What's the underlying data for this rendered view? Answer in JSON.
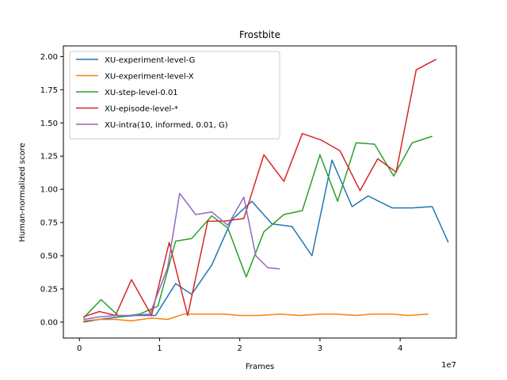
{
  "chart_data": {
    "type": "line",
    "title": "Frostbite",
    "xlabel": "Frames",
    "ylabel": "Human-normalized score",
    "x_offset_label": "1e7",
    "xlim": [
      -0.2,
      4.7
    ],
    "ylim": [
      -0.12,
      2.08
    ],
    "x_ticks": [
      0,
      1,
      2,
      3,
      4
    ],
    "x_tick_labels": [
      "0",
      "1",
      "2",
      "3",
      "4"
    ],
    "y_ticks": [
      0,
      0.25,
      0.5,
      0.75,
      1.0,
      1.25,
      1.5,
      1.75,
      2.0
    ],
    "y_tick_labels": [
      "0.00",
      "0.25",
      "0.50",
      "0.75",
      "1.00",
      "1.25",
      "1.50",
      "1.75",
      "2.00"
    ],
    "grid": false,
    "legend_position": "top-left",
    "series": [
      {
        "name": "XU-experiment-level-G",
        "color": "#1f77b4",
        "x": [
          0.05,
          0.25,
          0.5,
          0.7,
          0.95,
          1.2,
          1.4,
          1.65,
          1.9,
          2.15,
          2.4,
          2.65,
          2.9,
          3.15,
          3.4,
          3.6,
          3.9,
          4.15,
          4.4,
          4.6
        ],
        "y": [
          0.0,
          0.02,
          0.04,
          0.05,
          0.05,
          0.29,
          0.21,
          0.43,
          0.77,
          0.91,
          0.74,
          0.72,
          0.5,
          1.22,
          0.87,
          0.95,
          0.86,
          0.86,
          0.87,
          0.6
        ]
      },
      {
        "name": "XU-experiment-level-X",
        "color": "#ff7f0e",
        "x": [
          0.05,
          0.25,
          0.45,
          0.65,
          0.9,
          1.1,
          1.3,
          1.55,
          1.8,
          2.0,
          2.25,
          2.5,
          2.75,
          3.0,
          3.2,
          3.45,
          3.65,
          3.9,
          4.1,
          4.35
        ],
        "y": [
          0.01,
          0.02,
          0.02,
          0.01,
          0.03,
          0.02,
          0.06,
          0.06,
          0.06,
          0.05,
          0.05,
          0.06,
          0.05,
          0.06,
          0.06,
          0.05,
          0.06,
          0.06,
          0.05,
          0.06
        ]
      },
      {
        "name": "XU-step-level-0.01",
        "color": "#2ca02c",
        "x": [
          0.05,
          0.27,
          0.5,
          0.75,
          0.98,
          1.2,
          1.4,
          1.65,
          1.85,
          2.08,
          2.3,
          2.55,
          2.78,
          3.0,
          3.22,
          3.45,
          3.68,
          3.92,
          4.15,
          4.4
        ],
        "y": [
          0.03,
          0.17,
          0.04,
          0.06,
          0.12,
          0.61,
          0.63,
          0.8,
          0.71,
          0.34,
          0.68,
          0.81,
          0.84,
          1.26,
          0.91,
          1.35,
          1.34,
          1.1,
          1.35,
          1.4
        ]
      },
      {
        "name": "XU-episode-level-*",
        "color": "#d62728",
        "x": [
          0.05,
          0.25,
          0.45,
          0.65,
          0.9,
          1.12,
          1.35,
          1.6,
          1.8,
          2.05,
          2.3,
          2.55,
          2.78,
          3.02,
          3.25,
          3.5,
          3.72,
          3.95,
          4.2,
          4.45
        ],
        "y": [
          0.04,
          0.08,
          0.05,
          0.32,
          0.05,
          0.6,
          0.05,
          0.76,
          0.76,
          0.78,
          1.26,
          1.06,
          1.42,
          1.37,
          1.29,
          0.99,
          1.23,
          1.13,
          1.9,
          1.98
        ]
      },
      {
        "name": "XU-intra(10, informed, 0.01, G)",
        "color": "#9467bd",
        "x": [
          0.05,
          0.25,
          0.45,
          0.65,
          0.88,
          1.1,
          1.25,
          1.45,
          1.65,
          1.85,
          2.05,
          2.2,
          2.35,
          2.5
        ],
        "y": [
          0.02,
          0.04,
          0.05,
          0.05,
          0.06,
          0.41,
          0.97,
          0.81,
          0.83,
          0.73,
          0.94,
          0.5,
          0.41,
          0.4
        ]
      }
    ]
  }
}
